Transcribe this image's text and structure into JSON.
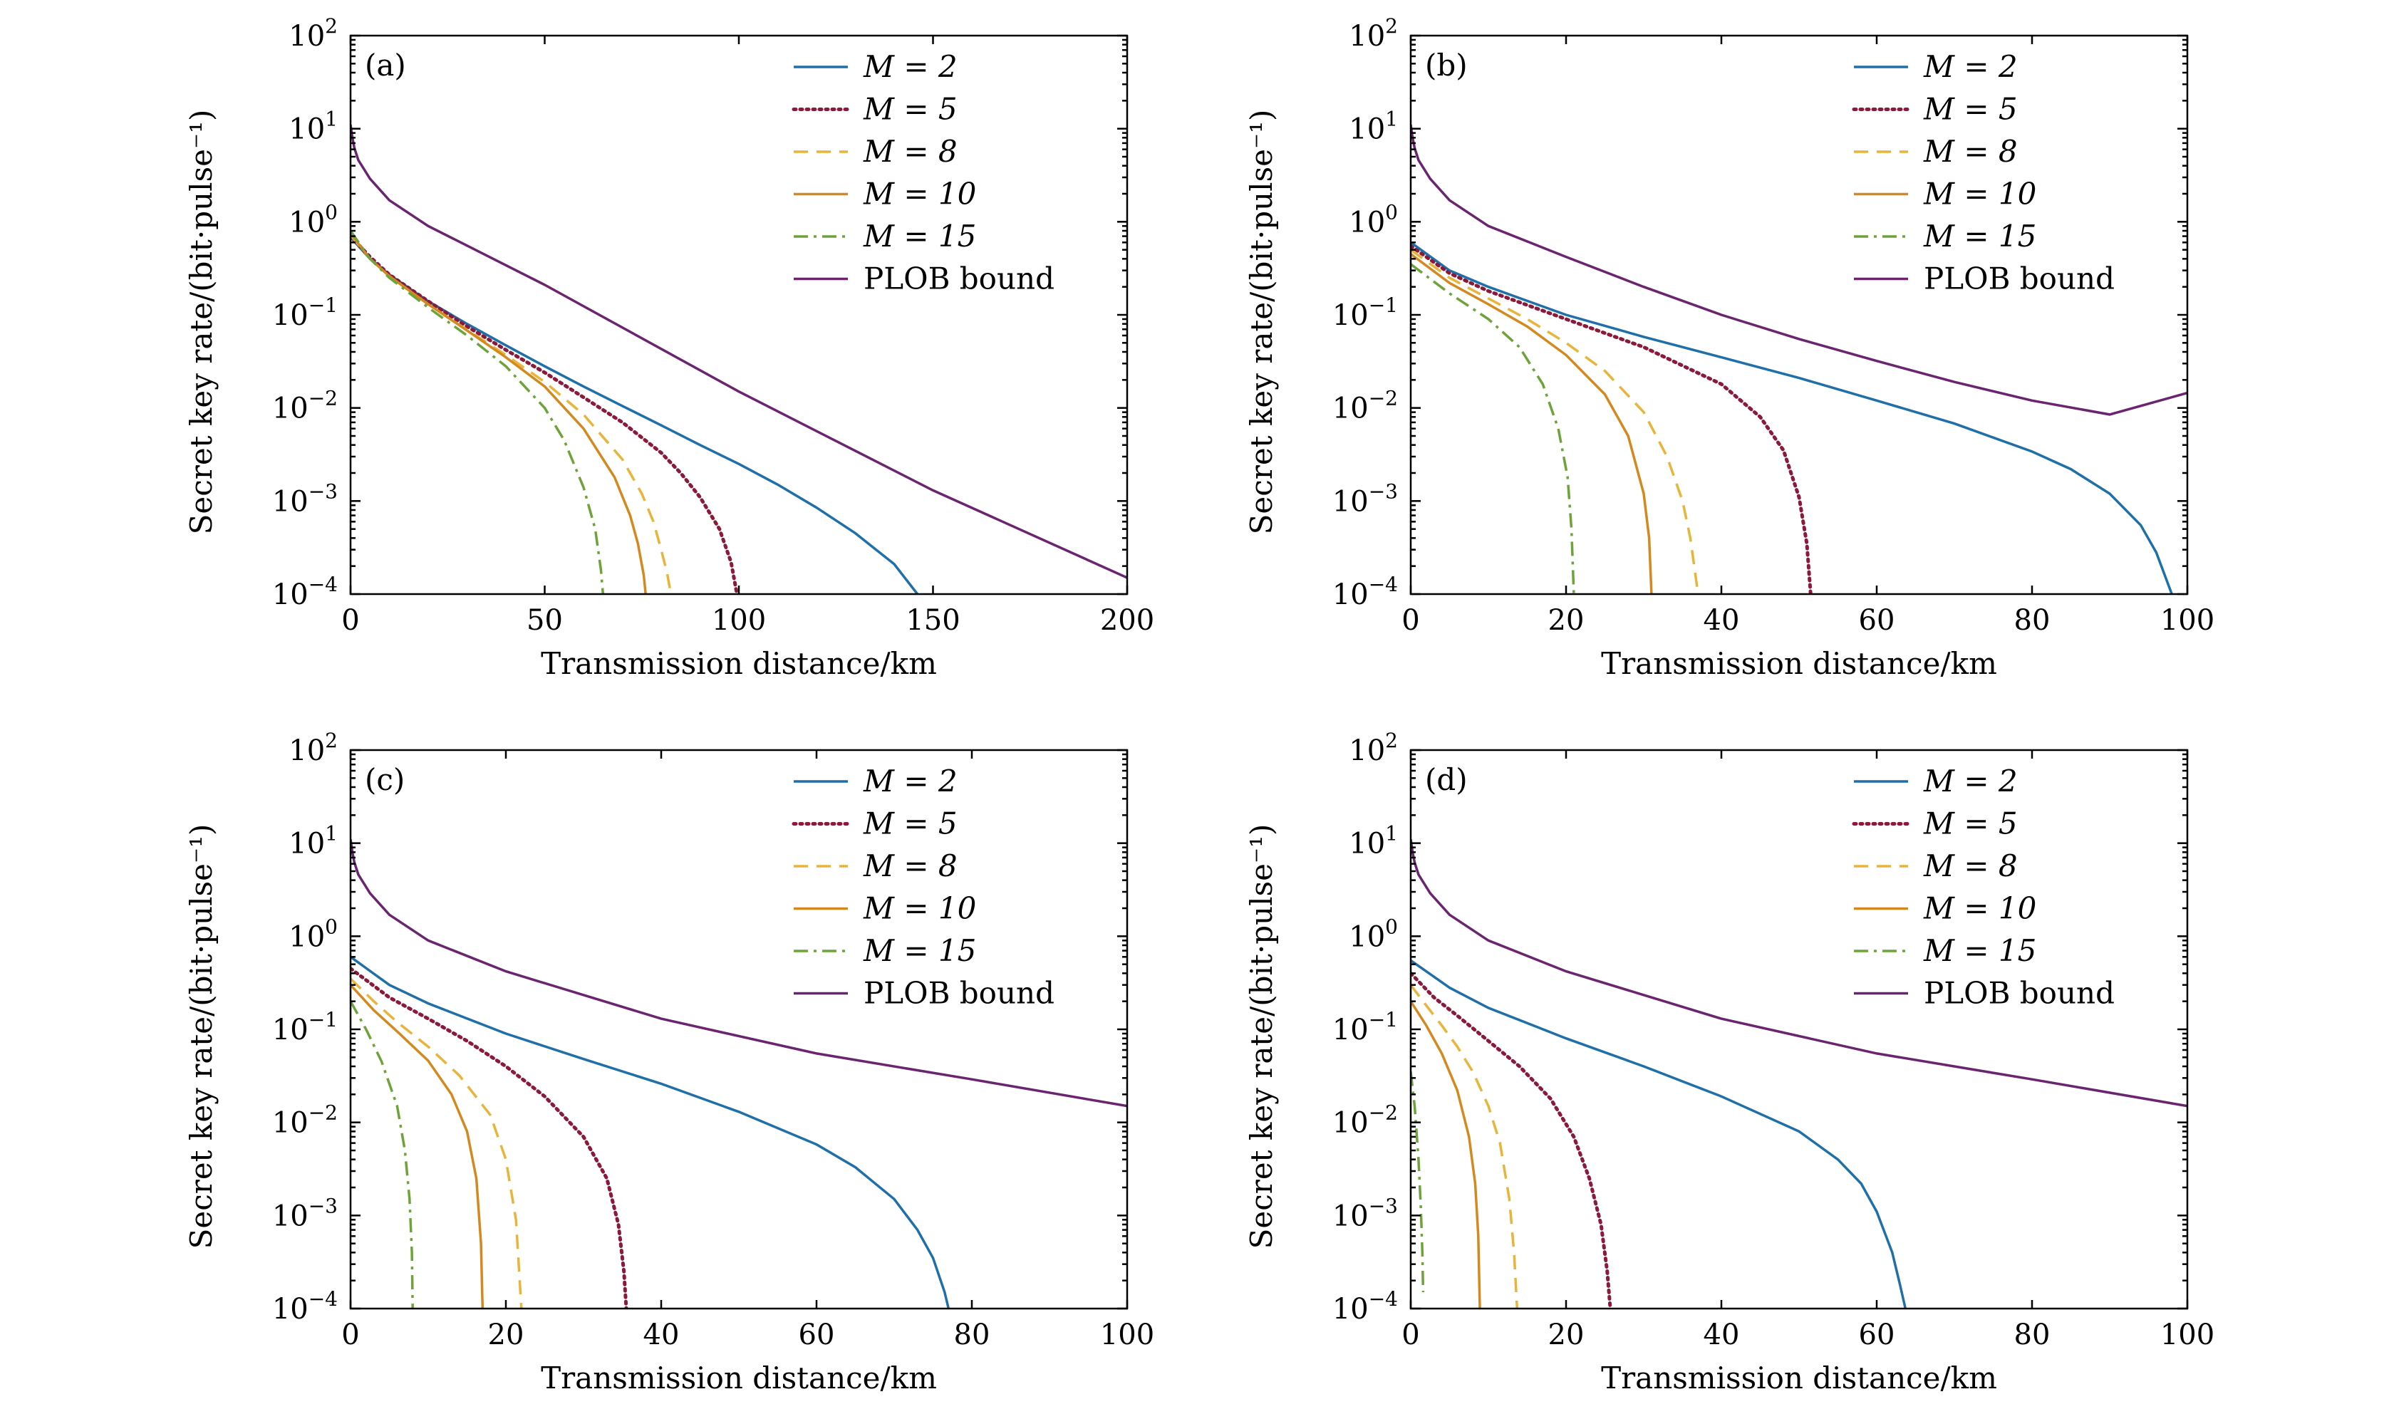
{
  "colors": {
    "M2": "#1f6fa8",
    "M5": "#8b1a3a",
    "M8": "#e8b43a",
    "M10": "#d4891e",
    "M15": "#6ea33a",
    "PLOB": "#6b2470"
  },
  "chart_data": [
    {
      "type": "line",
      "panel_label": "(a)",
      "xlabel": "Transmission distance/km",
      "ylabel": "Secret key rate/(bit·pulse⁻¹)",
      "xlim": [
        0,
        200
      ],
      "xticks": [
        0,
        50,
        100,
        150,
        200
      ],
      "ylim": [
        0.0001,
        100
      ],
      "yscale": "log",
      "yticks": [
        -4,
        -3,
        -2,
        -1,
        0,
        1,
        2
      ],
      "legend_position": "top-right",
      "series": [
        {
          "name": "M = 2",
          "key": "M2",
          "style": "solid",
          "x": [
            0,
            5,
            10,
            20,
            30,
            40,
            50,
            60,
            70,
            80,
            90,
            100,
            110,
            120,
            130,
            140,
            146
          ],
          "y": [
            0.68,
            0.4,
            0.27,
            0.14,
            0.08,
            0.047,
            0.028,
            0.017,
            0.0105,
            0.0065,
            0.004,
            0.0025,
            0.0015,
            0.00085,
            0.00045,
            0.00021,
            0.0001
          ]
        },
        {
          "name": "M = 5",
          "key": "M5",
          "style": "dotted",
          "x": [
            0,
            5,
            10,
            20,
            30,
            40,
            50,
            60,
            70,
            80,
            85,
            90,
            95,
            98,
            99.5
          ],
          "y": [
            0.7,
            0.42,
            0.27,
            0.14,
            0.075,
            0.042,
            0.024,
            0.013,
            0.007,
            0.0033,
            0.002,
            0.0011,
            0.0005,
            0.00022,
            0.0001
          ]
        },
        {
          "name": "M = 8",
          "key": "M8",
          "style": "dashed",
          "x": [
            0,
            5,
            10,
            20,
            30,
            40,
            50,
            60,
            70,
            75,
            78,
            80,
            81.5,
            82.5
          ],
          "y": [
            0.72,
            0.4,
            0.26,
            0.13,
            0.069,
            0.037,
            0.019,
            0.0085,
            0.0028,
            0.0012,
            0.0006,
            0.0003,
            0.00017,
            0.0001
          ]
        },
        {
          "name": "M = 10",
          "key": "M10",
          "style": "solid",
          "x": [
            0,
            5,
            10,
            20,
            30,
            40,
            50,
            60,
            68,
            72,
            74,
            75.5,
            76
          ],
          "y": [
            0.75,
            0.4,
            0.26,
            0.13,
            0.068,
            0.035,
            0.017,
            0.006,
            0.0018,
            0.0007,
            0.00035,
            0.00016,
            0.0001
          ]
        },
        {
          "name": "M = 15",
          "key": "M15",
          "style": "dashdot",
          "x": [
            0,
            5,
            10,
            20,
            30,
            40,
            50,
            55,
            60,
            63,
            64.5,
            65
          ],
          "y": [
            0.8,
            0.4,
            0.25,
            0.12,
            0.06,
            0.028,
            0.01,
            0.0045,
            0.0014,
            0.0005,
            0.00018,
            0.0001
          ]
        },
        {
          "name": "PLOB bound",
          "key": "PLOB",
          "style": "solid",
          "x": [
            0,
            0.5,
            1,
            2,
            5,
            10,
            20,
            50,
            100,
            150,
            200
          ],
          "y": [
            11,
            7.9,
            6.2,
            4.6,
            2.9,
            1.7,
            0.9,
            0.21,
            0.015,
            0.0013,
            0.00015
          ]
        }
      ]
    },
    {
      "type": "line",
      "panel_label": "(b)",
      "xlabel": "Transmission distance/km",
      "ylabel": "Secret key rate/(bit·pulse⁻¹)",
      "xlim": [
        0,
        100
      ],
      "xticks": [
        0,
        20,
        40,
        60,
        80,
        100
      ],
      "ylim": [
        0.0001,
        100
      ],
      "yscale": "log",
      "yticks": [
        -4,
        -3,
        -2,
        -1,
        0,
        1,
        2
      ],
      "legend_position": "top-right",
      "series": [
        {
          "name": "M = 2",
          "key": "M2",
          "style": "solid",
          "x": [
            0,
            5,
            10,
            20,
            30,
            40,
            50,
            60,
            70,
            80,
            85,
            90,
            94,
            96,
            98
          ],
          "y": [
            0.6,
            0.3,
            0.2,
            0.1,
            0.058,
            0.035,
            0.021,
            0.012,
            0.0068,
            0.0034,
            0.0022,
            0.0012,
            0.00055,
            0.00028,
            0.0001
          ]
        },
        {
          "name": "M = 5",
          "key": "M5",
          "style": "dotted",
          "x": [
            0,
            5,
            10,
            20,
            30,
            40,
            45,
            48,
            50,
            51,
            51.5
          ],
          "y": [
            0.55,
            0.28,
            0.18,
            0.09,
            0.045,
            0.018,
            0.008,
            0.0035,
            0.0011,
            0.00035,
            0.0001
          ]
        },
        {
          "name": "M = 8",
          "key": "M8",
          "style": "dashed",
          "x": [
            0,
            5,
            10,
            15,
            20,
            25,
            30,
            33,
            35,
            36,
            37
          ],
          "y": [
            0.5,
            0.25,
            0.15,
            0.09,
            0.05,
            0.025,
            0.009,
            0.003,
            0.001,
            0.0004,
            0.0001
          ]
        },
        {
          "name": "M = 10",
          "key": "M10",
          "style": "solid",
          "x": [
            0,
            5,
            10,
            15,
            20,
            25,
            28,
            30,
            30.7,
            31
          ],
          "y": [
            0.45,
            0.22,
            0.13,
            0.075,
            0.037,
            0.014,
            0.005,
            0.0012,
            0.0004,
            0.0001
          ]
        },
        {
          "name": "M = 15",
          "key": "M15",
          "style": "dashdot",
          "x": [
            0,
            5,
            10,
            14,
            17,
            19,
            20.2,
            20.7,
            21
          ],
          "y": [
            0.35,
            0.17,
            0.09,
            0.045,
            0.018,
            0.006,
            0.0018,
            0.0005,
            0.0001
          ]
        },
        {
          "name": "PLOB bound",
          "key": "PLOB",
          "style": "solid",
          "x": [
            0,
            0.25,
            0.5,
            1,
            2.5,
            5,
            10,
            20,
            30,
            40,
            50,
            60,
            70,
            80,
            90,
            100
          ],
          "y": [
            11,
            7.9,
            6.2,
            4.6,
            2.9,
            1.7,
            0.9,
            0.42,
            0.2,
            0.1,
            0.055,
            0.032,
            0.019,
            0.012,
            0.0085,
            0.0145
          ]
        }
      ]
    },
    {
      "type": "line",
      "panel_label": "(c)",
      "xlabel": "Transmission distance/km",
      "ylabel": "Secret key rate/(bit·pulse⁻¹)",
      "xlim": [
        0,
        100
      ],
      "xticks": [
        0,
        20,
        40,
        60,
        80,
        100
      ],
      "ylim": [
        0.0001,
        100
      ],
      "yscale": "log",
      "yticks": [
        -4,
        -3,
        -2,
        -1,
        0,
        1,
        2
      ],
      "legend_position": "top-right",
      "series": [
        {
          "name": "M = 2",
          "key": "M2",
          "style": "solid",
          "x": [
            0,
            5,
            10,
            20,
            30,
            40,
            50,
            60,
            65,
            70,
            73,
            75,
            76.5,
            77
          ],
          "y": [
            0.6,
            0.3,
            0.19,
            0.09,
            0.048,
            0.026,
            0.013,
            0.0058,
            0.0033,
            0.0015,
            0.0007,
            0.00035,
            0.00015,
            0.0001
          ]
        },
        {
          "name": "M = 5",
          "key": "M5",
          "style": "dotted",
          "x": [
            0,
            5,
            10,
            15,
            20,
            25,
            30,
            33,
            34.5,
            35.2,
            35.5
          ],
          "y": [
            0.45,
            0.22,
            0.13,
            0.075,
            0.04,
            0.019,
            0.007,
            0.0025,
            0.0008,
            0.00025,
            0.0001
          ]
        },
        {
          "name": "M = 8",
          "key": "M8",
          "style": "dashed",
          "x": [
            0,
            3,
            6,
            10,
            14,
            18,
            20,
            21.3,
            22
          ],
          "y": [
            0.35,
            0.2,
            0.12,
            0.065,
            0.032,
            0.012,
            0.004,
            0.0009,
            0.0001
          ]
        },
        {
          "name": "M = 10",
          "key": "M10",
          "style": "solid",
          "x": [
            0,
            3,
            6,
            10,
            13,
            15,
            16.2,
            16.8,
            17
          ],
          "y": [
            0.3,
            0.16,
            0.095,
            0.046,
            0.02,
            0.008,
            0.0025,
            0.0005,
            0.0001
          ]
        },
        {
          "name": "M = 15",
          "key": "M15",
          "style": "dashdot",
          "x": [
            0,
            2,
            4,
            6,
            7,
            7.6,
            7.9,
            8
          ],
          "y": [
            0.2,
            0.1,
            0.045,
            0.015,
            0.005,
            0.0015,
            0.0004,
            0.0001
          ]
        },
        {
          "name": "PLOB bound",
          "key": "PLOB",
          "style": "solid",
          "x": [
            0,
            0.25,
            0.5,
            1,
            2.5,
            5,
            10,
            20,
            40,
            60,
            80,
            100
          ],
          "y": [
            11,
            7.9,
            6.2,
            4.6,
            2.9,
            1.7,
            0.9,
            0.42,
            0.13,
            0.055,
            0.029,
            0.015
          ]
        }
      ]
    },
    {
      "type": "line",
      "panel_label": "(d)",
      "xlabel": "Transmission distance/km",
      "ylabel": "Secret key rate/(bit·pulse⁻¹)",
      "xlim": [
        0,
        100
      ],
      "xticks": [
        0,
        20,
        40,
        60,
        80,
        100
      ],
      "ylim": [
        0.0001,
        100
      ],
      "yscale": "log",
      "yticks": [
        -4,
        -3,
        -2,
        -1,
        0,
        1,
        2
      ],
      "legend_position": "top-right",
      "series": [
        {
          "name": "M = 2",
          "key": "M2",
          "style": "solid",
          "x": [
            0,
            5,
            10,
            20,
            30,
            40,
            50,
            55,
            58,
            60,
            62,
            63,
            63.7
          ],
          "y": [
            0.55,
            0.28,
            0.17,
            0.08,
            0.04,
            0.019,
            0.008,
            0.004,
            0.0022,
            0.0011,
            0.0004,
            0.00018,
            0.0001
          ]
        },
        {
          "name": "M = 5",
          "key": "M5",
          "style": "dotted",
          "x": [
            0,
            3,
            6,
            10,
            14,
            18,
            21,
            23,
            24.5,
            25.3,
            25.7
          ],
          "y": [
            0.4,
            0.22,
            0.14,
            0.075,
            0.04,
            0.018,
            0.007,
            0.0025,
            0.0008,
            0.00025,
            0.0001
          ]
        },
        {
          "name": "M = 8",
          "key": "M8",
          "style": "dashed",
          "x": [
            0,
            2,
            4,
            6,
            8,
            10,
            11.5,
            12.7,
            13.3,
            13.7
          ],
          "y": [
            0.3,
            0.18,
            0.11,
            0.065,
            0.035,
            0.015,
            0.006,
            0.0015,
            0.0004,
            0.0001
          ]
        },
        {
          "name": "M = 10",
          "key": "M10",
          "style": "solid",
          "x": [
            0,
            2,
            4,
            6,
            7.5,
            8.3,
            8.7,
            8.9
          ],
          "y": [
            0.2,
            0.11,
            0.055,
            0.022,
            0.007,
            0.0022,
            0.0006,
            0.0001
          ]
        },
        {
          "name": "M = 15",
          "key": "M15",
          "style": "dashdot",
          "x": [
            0,
            0.5,
            1,
            1.3,
            1.5,
            1.6
          ],
          "y": [
            0.035,
            0.015,
            0.004,
            0.0012,
            0.0004,
            0.00015
          ]
        },
        {
          "name": "PLOB bound",
          "key": "PLOB",
          "style": "solid",
          "x": [
            0,
            0.25,
            0.5,
            1,
            2.5,
            5,
            10,
            20,
            40,
            60,
            80,
            100
          ],
          "y": [
            11,
            7.9,
            6.2,
            4.6,
            2.9,
            1.7,
            0.9,
            0.42,
            0.13,
            0.055,
            0.029,
            0.015
          ]
        }
      ]
    }
  ]
}
